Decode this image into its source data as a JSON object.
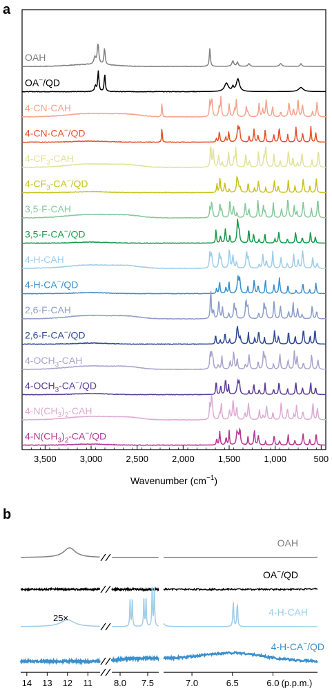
{
  "chart_data": [
    {
      "panel": "a",
      "type": "line",
      "xlabel": "Wavenumber (cm",
      "xlabel_sup": "−1",
      "xlabel_tail": ")",
      "xlim": [
        3750,
        450
      ],
      "xticks": [
        3500,
        3000,
        2500,
        2000,
        1500,
        1000,
        500
      ],
      "xtick_labels": [
        "3,500",
        "3,000",
        "2,500",
        "2,000",
        "1,500",
        "1,000",
        "500"
      ],
      "series": [
        {
          "label": "OAH",
          "label_sub": "",
          "label_tail": "",
          "color": "#7f7f7f",
          "kind": "acid"
        },
        {
          "label": "OA",
          "label_sup": "−",
          "label_tail": "/QD",
          "color": "#000000",
          "kind": "qd"
        },
        {
          "label": "4-CN-CAH",
          "color": "#f4a48c",
          "kind": "acid",
          "sharp": [
            2230
          ]
        },
        {
          "label": "4-CN-CA",
          "label_sup": "−",
          "label_tail": "/QD",
          "color": "#e8502a",
          "kind": "qd",
          "sharp": [
            2230
          ]
        },
        {
          "label": "4-CF",
          "label_sub": "3",
          "label_tail": "-CAH",
          "color": "#e2e296",
          "kind": "acid"
        },
        {
          "label": "4-CF",
          "label_sub": "3",
          "label_mid": "-CA",
          "label_sup": "−",
          "label_tail": "/QD",
          "color": "#c8c21e",
          "kind": "qd"
        },
        {
          "label": "3,5-F-CAH",
          "color": "#86c89a",
          "kind": "acid"
        },
        {
          "label": "3,5-F-CA",
          "label_sup": "−",
          "label_tail": "/QD",
          "color": "#169a4a",
          "kind": "qd"
        },
        {
          "label": "4-H-CAH",
          "color": "#9ecde8",
          "kind": "acid"
        },
        {
          "label": "4-H-CA",
          "label_sup": "−",
          "label_tail": "/QD",
          "color": "#3b8fcc",
          "kind": "qd"
        },
        {
          "label": "2,6-F-CAH",
          "color": "#8d9dcb",
          "kind": "acid"
        },
        {
          "label": "2,6-F-CA",
          "label_sup": "−",
          "label_tail": "/QD",
          "color": "#2f4796",
          "kind": "qd"
        },
        {
          "label": "4-OCH",
          "label_sub": "3",
          "label_tail": "-CAH",
          "color": "#aaa4cc",
          "kind": "acid"
        },
        {
          "label": "4-OCH",
          "label_sub": "3",
          "label_mid": "-CA",
          "label_sup": "−",
          "label_tail": "/QD",
          "color": "#5b3d98",
          "kind": "qd"
        },
        {
          "label": "4-N(CH",
          "label_sub": "3",
          "label_mid": ")",
          "label_sub2": "2",
          "label_tail": "-CAH",
          "color": "#deaad4",
          "kind": "acid"
        },
        {
          "label": "4-N(CH",
          "label_sub": "3",
          "label_mid": ")",
          "label_sub2": "2",
          "label_tail2": "-CA",
          "label_sup": "−",
          "label_tail": "/QD",
          "color": "#b23a93",
          "kind": "qd"
        }
      ]
    },
    {
      "panel": "b",
      "type": "line",
      "xlabel": "(p.p.m.)",
      "xticks_left": [
        14,
        13,
        12,
        11
      ],
      "xticks_mid": [
        8.0,
        7.5
      ],
      "xticks_right": [
        7.0,
        6.5,
        6.0
      ],
      "xtick_labels_left": [
        "14",
        "13",
        "12",
        "11"
      ],
      "xtick_labels_mid": [
        "8.0",
        "7.5"
      ],
      "xtick_labels_right": [
        "7.0",
        "6.5",
        "6.0"
      ],
      "scale_annotation": "25×",
      "series": [
        {
          "label": "OAH",
          "color": "#7f7f7f"
        },
        {
          "label": "OA",
          "label_sup": "−",
          "label_tail": "/QD",
          "color": "#000000"
        },
        {
          "label": "4-H-CAH",
          "color": "#9ecde8"
        },
        {
          "label": "4-H-CA",
          "label_sup": "−",
          "label_tail": "/QD",
          "color": "#3b8fcc"
        }
      ]
    }
  ]
}
